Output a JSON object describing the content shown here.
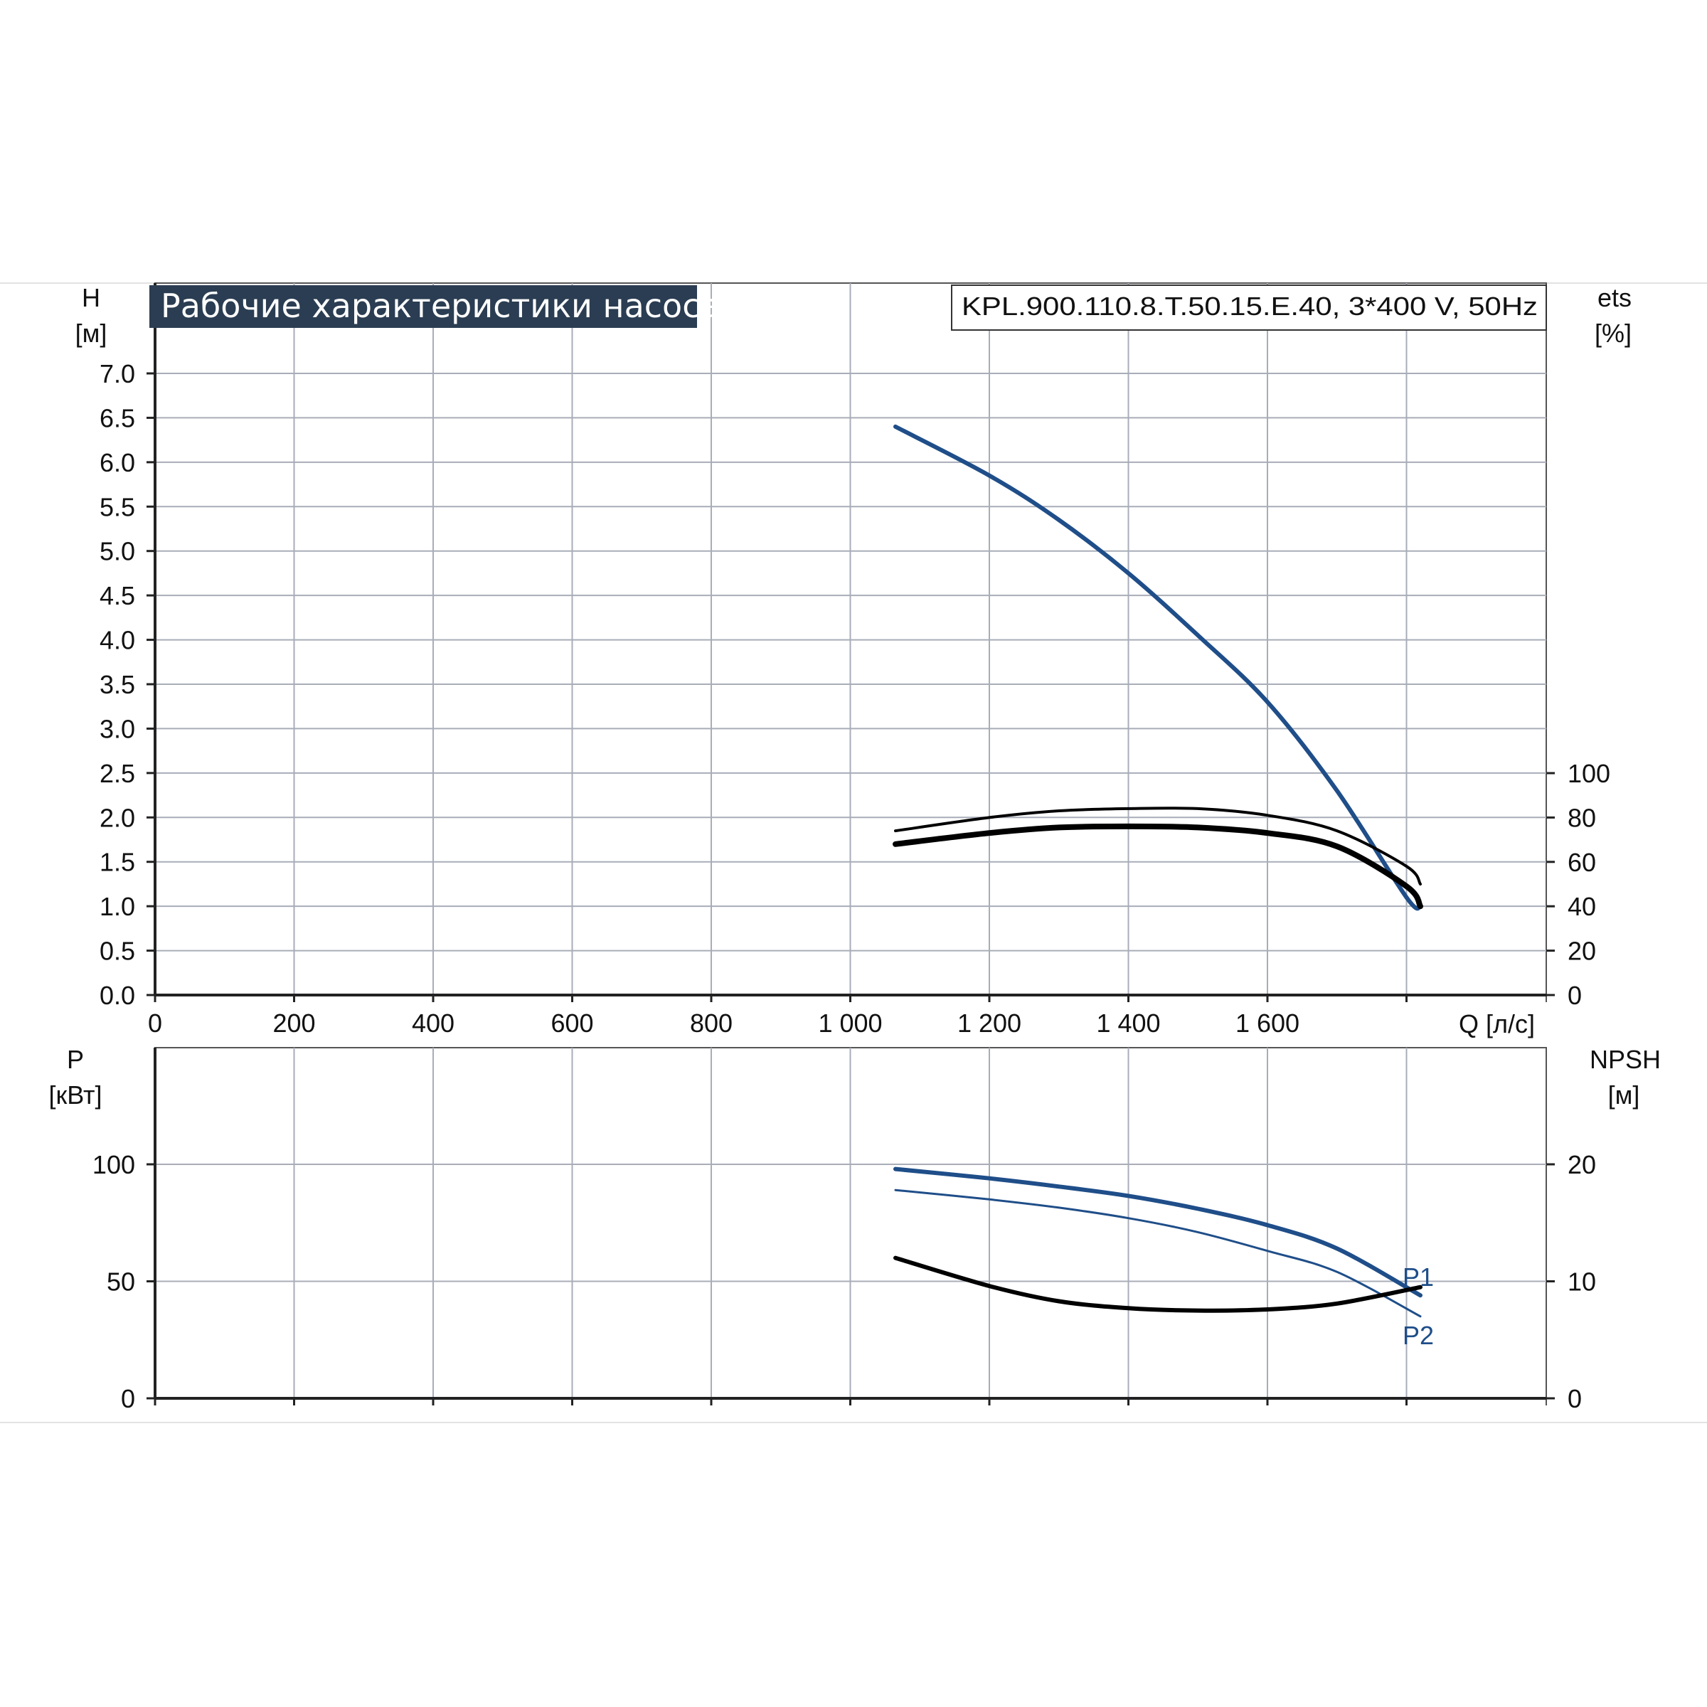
{
  "chart_data": [
    {
      "type": "line",
      "title": "Рабочие характеристики насоса",
      "model": "KPL.900.110.8.T.50.15.E.40, 3*400 V, 50Hz",
      "xlabel": "Q [л/с]",
      "xlim": [
        0,
        2000
      ],
      "x_ticks": [
        0,
        200,
        400,
        600,
        800,
        1000,
        1200,
        1400,
        1600,
        1800
      ],
      "x_tick_labels": [
        "0",
        "200",
        "400",
        "600",
        "800",
        "1 000",
        "1 200",
        "1 400",
        "1 600",
        ""
      ],
      "ylabel": "H",
      "ylabel_unit": "[м]",
      "ylim": [
        0,
        7.0
      ],
      "y_ticks": [
        0.0,
        0.5,
        1.0,
        1.5,
        2.0,
        2.5,
        3.0,
        3.5,
        4.0,
        4.5,
        5.0,
        5.5,
        6.0,
        6.5,
        7.0
      ],
      "y_tick_labels": [
        "0.0",
        "0.5",
        "1.0",
        "1.5",
        "2.0",
        "2.5",
        "3.0",
        "3.5",
        "4.0",
        "4.5",
        "5.0",
        "5.5",
        "6.0",
        "6.5",
        "7.0"
      ],
      "y2label": "ets",
      "y2label_unit": "[%]",
      "y2lim": [
        0,
        280
      ],
      "y2_ticks": [
        0,
        20,
        40,
        60,
        80,
        100
      ],
      "y2_tick_labels": [
        "0",
        "20",
        "40",
        "60",
        "80",
        "100"
      ],
      "grid": true,
      "series": [
        {
          "axis": "left",
          "color": "#1f4e89",
          "width": 6,
          "x": [
            1065,
            1200,
            1300,
            1400,
            1500,
            1600,
            1700,
            1800,
            1820
          ],
          "y": [
            6.4,
            5.85,
            5.35,
            4.75,
            4.05,
            3.3,
            2.3,
            1.1,
            1.0
          ]
        },
        {
          "axis": "right",
          "color": "#000000",
          "width": 4,
          "x": [
            1065,
            1200,
            1300,
            1400,
            1500,
            1600,
            1700,
            1800,
            1820
          ],
          "y": [
            74,
            80,
            83,
            84,
            84,
            81,
            74,
            58,
            50
          ]
        },
        {
          "axis": "right",
          "color": "#000000",
          "width": 8,
          "x": [
            1065,
            1200,
            1300,
            1400,
            1500,
            1600,
            1700,
            1800,
            1820
          ],
          "y": [
            68,
            73,
            75.5,
            76,
            75.5,
            73,
            67,
            49,
            40
          ]
        }
      ]
    },
    {
      "type": "line",
      "xlim": [
        0,
        2000
      ],
      "x_ticks": [
        0,
        200,
        400,
        600,
        800,
        1000,
        1200,
        1400,
        1600,
        1800
      ],
      "ylabel": "P",
      "ylabel_unit": "[кВт]",
      "ylim": [
        0,
        150
      ],
      "y_ticks": [
        0,
        50,
        100
      ],
      "y_tick_labels": [
        "0",
        "50",
        "100"
      ],
      "y2label": "NPSH",
      "y2label_unit": "[м]",
      "y2lim": [
        0,
        30
      ],
      "y2_ticks": [
        0,
        10,
        20
      ],
      "y2_tick_labels": [
        "0",
        "10",
        "20"
      ],
      "grid": true,
      "series": [
        {
          "name": "P1",
          "axis": "left",
          "color": "#1f4e89",
          "width": 6,
          "x": [
            1065,
            1200,
            1300,
            1400,
            1500,
            1600,
            1700,
            1820
          ],
          "y": [
            98,
            94,
            90.5,
            86.5,
            81,
            74,
            64,
            44
          ]
        },
        {
          "name": "P2",
          "axis": "left",
          "color": "#1f4e89",
          "width": 3,
          "x": [
            1065,
            1200,
            1300,
            1400,
            1500,
            1600,
            1700,
            1820
          ],
          "y": [
            89,
            85,
            81.5,
            77,
            71,
            63,
            54,
            35
          ]
        },
        {
          "axis": "right",
          "color": "#000000",
          "width": 6,
          "x": [
            1065,
            1200,
            1300,
            1400,
            1500,
            1600,
            1700,
            1820
          ],
          "y": [
            12.0,
            9.6,
            8.3,
            7.7,
            7.5,
            7.6,
            8.1,
            9.5
          ]
        }
      ]
    }
  ]
}
